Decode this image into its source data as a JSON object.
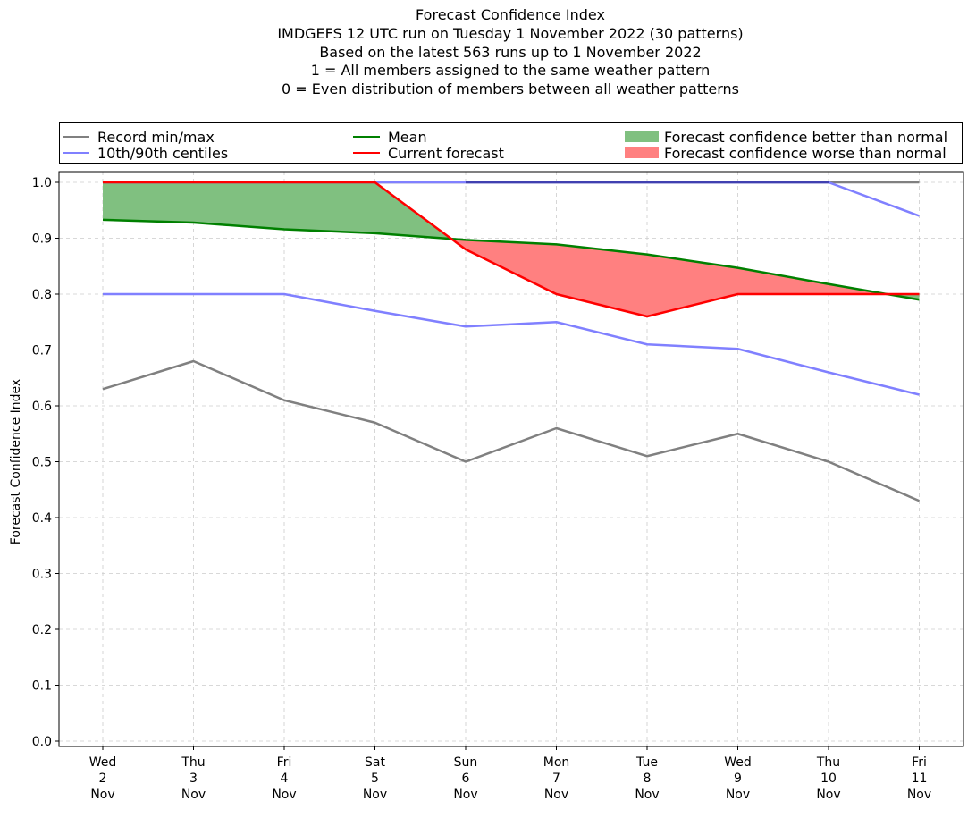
{
  "chart_data": {
    "type": "line",
    "title_lines": [
      "Forecast Confidence Index",
      "IMDGEFS 12 UTC run on Tuesday 1 November 2022 (30 patterns)",
      "Based on the latest 563 runs up to 1 November 2022",
      "1 = All members assigned to the same weather pattern",
      "0 = Even distribution of members between all weather patterns"
    ],
    "ylabel": "Forecast Confidence Index",
    "xlabel": "",
    "ylim": [
      0.0,
      1.0
    ],
    "yticks": [
      "0.0",
      "0.1",
      "0.2",
      "0.3",
      "0.4",
      "0.5",
      "0.6",
      "0.7",
      "0.8",
      "0.9",
      "1.0"
    ],
    "categories": [
      [
        "Wed",
        "2",
        "Nov"
      ],
      [
        "Thu",
        "3",
        "Nov"
      ],
      [
        "Fri",
        "4",
        "Nov"
      ],
      [
        "Sat",
        "5",
        "Nov"
      ],
      [
        "Sun",
        "6",
        "Nov"
      ],
      [
        "Mon",
        "7",
        "Nov"
      ],
      [
        "Tue",
        "8",
        "Nov"
      ],
      [
        "Wed",
        "9",
        "Nov"
      ],
      [
        "Thu",
        "10",
        "Nov"
      ],
      [
        "Fri",
        "11",
        "Nov"
      ]
    ],
    "grid": true,
    "legend_position": "top",
    "series": [
      {
        "name": "Record min/max",
        "color": "#808080",
        "part": "min",
        "values": [
          0.63,
          0.68,
          0.61,
          0.57,
          0.5,
          0.56,
          0.51,
          0.55,
          0.5,
          0.43
        ]
      },
      {
        "name": "Record min/max",
        "color": "#808080",
        "part": "max",
        "values": [
          1.0,
          1.0,
          1.0,
          1.0,
          1.0,
          1.0,
          1.0,
          1.0,
          1.0,
          1.0
        ]
      },
      {
        "name": "10th/90th centiles",
        "color": "#8080ff",
        "part": "10th",
        "values": [
          0.8,
          0.8,
          0.8,
          0.77,
          0.742,
          0.75,
          0.71,
          0.702,
          0.66,
          0.62
        ]
      },
      {
        "name": "10th/90th centiles",
        "color": "#8080ff",
        "part": "90th",
        "values": [
          1.0,
          1.0,
          1.0,
          1.0,
          1.0,
          1.0,
          1.0,
          1.0,
          1.0,
          0.94
        ]
      },
      {
        "name": "Mean",
        "color": "#008000",
        "values": [
          0.933,
          0.928,
          0.916,
          0.909,
          0.897,
          0.889,
          0.871,
          0.847,
          0.818,
          0.79
        ]
      },
      {
        "name": "Current forecast",
        "color": "#ff0000",
        "values": [
          1.0,
          1.0,
          1.0,
          1.0,
          0.88,
          0.8,
          0.76,
          0.8,
          0.8,
          0.8
        ]
      }
    ],
    "fills": [
      {
        "name": "Forecast confidence better than normal",
        "color": "#80c080"
      },
      {
        "name": "Forecast confidence worse than normal",
        "color": "#ff8080"
      }
    ]
  },
  "legend": {
    "record": "Record min/max",
    "centiles": "10th/90th centiles",
    "mean": "Mean",
    "current": "Current forecast",
    "better": "Forecast confidence better than normal",
    "worse": "Forecast confidence worse than normal"
  }
}
